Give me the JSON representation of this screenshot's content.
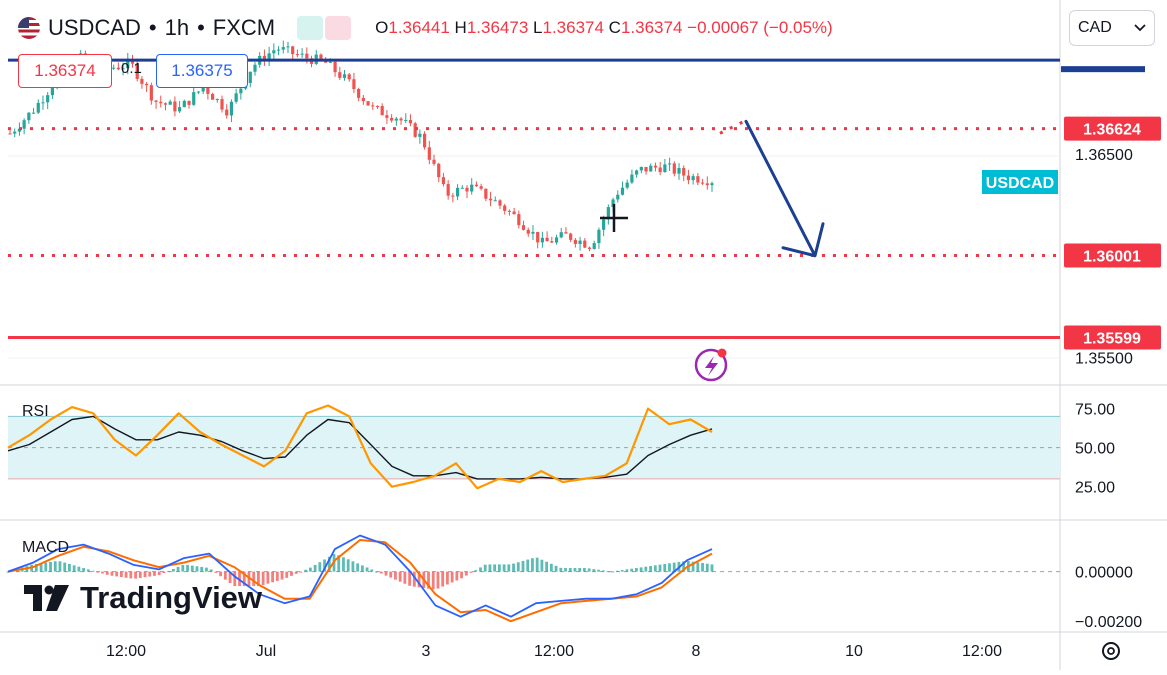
{
  "header": {
    "symbol": "USDCAD",
    "sep1": "•",
    "interval": "1h",
    "sep2": "•",
    "broker": "FXCM",
    "ohlc": {
      "o_label": "O",
      "o": "1.36441",
      "h_label": "H",
      "h": "1.36473",
      "l_label": "L",
      "l": "1.36374",
      "c_label": "C",
      "c": "1.36374",
      "change": "−0.00067 (−0.05%)"
    },
    "sell_price": "1.36374",
    "spread": "0.1",
    "buy_price": "1.36375"
  },
  "currency_selector": {
    "value": "CAD",
    "chevron": "chevron-down-icon"
  },
  "colors": {
    "up": "#26a69a",
    "down": "#ef5350",
    "level_dotted": "#f23645",
    "support_solid": "#f23645",
    "resistance_line": "#1c3f94",
    "arrow": "#1c3f94",
    "rsi": "#ff9800",
    "rsi_ma": "#131722",
    "macd": "#2962ff",
    "signal": "#ff6d00",
    "rsi_band": "#dff4f7",
    "tag_blue": "#00bcd4"
  },
  "watermark": "TradingView",
  "chart_data": [
    {
      "type": "candlestick",
      "title": "USDCAD • 1h • FXCM",
      "ylim": [
        1.354,
        1.37
      ],
      "y_ticks": [
        "1.36500",
        "1.35500"
      ],
      "x_ticks": [
        "12:00",
        "Jul",
        "3",
        "12:00",
        "8",
        "10",
        "12:00"
      ],
      "close_path": [
        1.366,
        1.3672,
        1.3688,
        1.3698,
        1.3692,
        1.3694,
        1.3676,
        1.3672,
        1.3683,
        1.3671,
        1.3693,
        1.3702,
        1.3698,
        1.3695,
        1.3685,
        1.3672,
        1.3668,
        1.3658,
        1.363,
        1.3634,
        1.3627,
        1.3618,
        1.3606,
        1.361,
        1.3605,
        1.363,
        1.3642,
        1.3644,
        1.3639,
        1.3637
      ],
      "levels": [
        {
          "value": "1.36624",
          "style": "dotted"
        },
        {
          "value": "1.36001",
          "style": "dotted"
        },
        {
          "value": "1.35599",
          "style": "solid"
        }
      ],
      "resistance_line": "1.3696",
      "symbol_tag": "USDCAD",
      "projection": {
        "from": 1.3665,
        "to": 1.36,
        "direction": "down"
      }
    },
    {
      "type": "line",
      "title": "RSI",
      "ylim": [
        12,
        85
      ],
      "y_ticks": [
        "75.00",
        "50.00",
        "25.00"
      ],
      "band": [
        30,
        70
      ],
      "series": [
        {
          "values": [
            50,
            58,
            68,
            76,
            72,
            55,
            45,
            58,
            72,
            60,
            52,
            45,
            38,
            48,
            72,
            77,
            70,
            40,
            25,
            28,
            32,
            40,
            24,
            30,
            28,
            35,
            28,
            30,
            32,
            40,
            75,
            65,
            68,
            60
          ]
        },
        {
          "values": [
            48,
            52,
            60,
            68,
            70,
            62,
            55,
            55,
            60,
            58,
            54,
            48,
            43,
            44,
            58,
            68,
            66,
            52,
            38,
            32,
            32,
            34,
            30,
            30,
            30,
            31,
            30,
            30,
            31,
            33,
            45,
            52,
            58,
            62
          ]
        }
      ]
    },
    {
      "type": "line",
      "title": "MACD",
      "ylim": [
        -0.0025,
        0.0022
      ],
      "y_ticks": [
        "0.00000",
        "−0.00200"
      ],
      "series": [
        {
          "values": [
            0.0,
            0.0004,
            0.001,
            0.0012,
            0.0008,
            0.0003,
            0.0001,
            0.0006,
            0.0008,
            -0.0002,
            -0.001,
            -0.0014,
            -0.0011,
            0.001,
            0.0016,
            0.0012,
            0.0,
            -0.0015,
            -0.002,
            -0.0015,
            -0.002,
            -0.0014,
            -0.0013,
            -0.0012,
            -0.0012,
            -0.001,
            -0.0005,
            0.0005,
            0.001
          ]
        },
        {
          "values": [
            0.0,
            0.0002,
            0.0007,
            0.0011,
            0.0009,
            0.0005,
            0.0002,
            0.0004,
            0.0007,
            0.0002,
            -0.0006,
            -0.0012,
            -0.0012,
            0.0005,
            0.0014,
            0.0013,
            0.0004,
            -0.001,
            -0.0018,
            -0.0017,
            -0.0022,
            -0.0018,
            -0.0014,
            -0.0013,
            -0.0012,
            -0.0011,
            -0.0007,
            0.0002,
            0.0008
          ]
        }
      ]
    }
  ]
}
